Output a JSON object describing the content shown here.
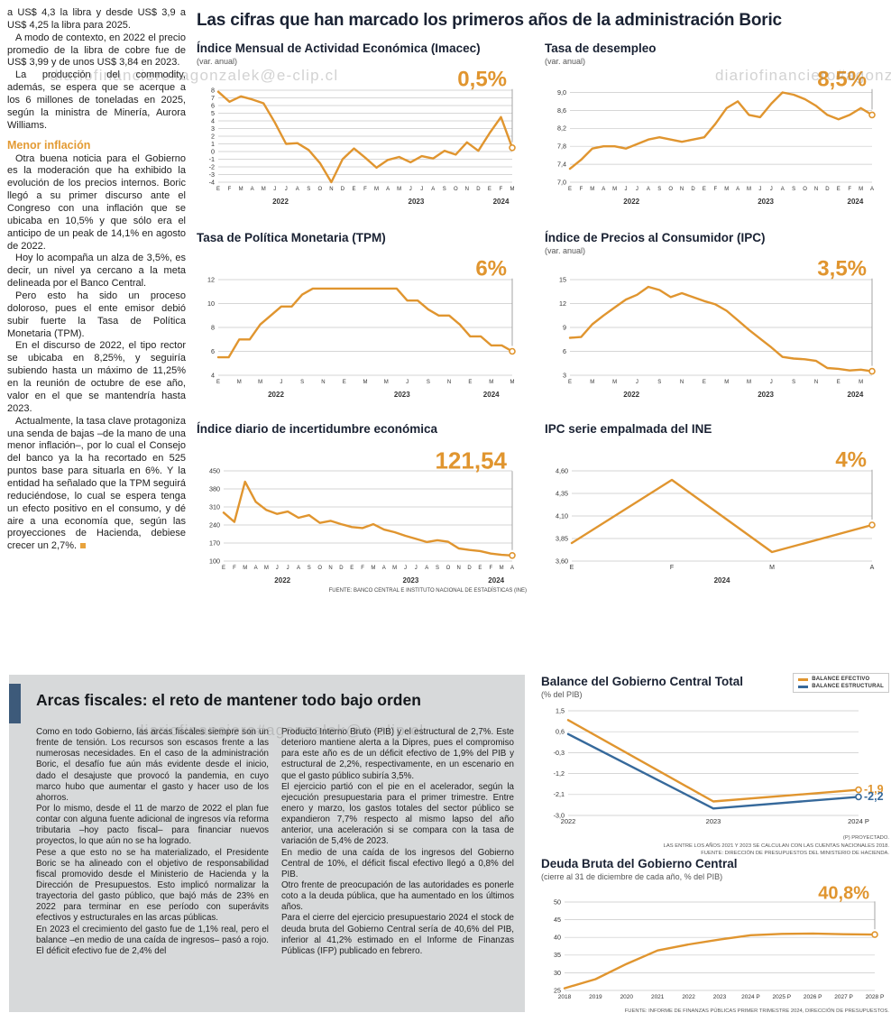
{
  "watermark": "diariofinanciero#agonzalek@e-clip.cl",
  "main_title": "Las cifras que han marcado los primeros años de la administración Boric",
  "left_column": {
    "paragraphs": [
      "a US$ 4,3 la libra y desde US$ 3,9 a US$ 4,25 la libra para 2025.",
      "A modo de contexto, en 2022 el precio promedio de la libra de cobre fue de US$ 3,99 y de unos US$ 3,84 en 2023.",
      "La producción del commodity, además, se espera que se acerque a los 6 millones de toneladas en 2025, según la ministra de Minería, Aurora Williams."
    ],
    "subhead": "Menor inflación",
    "paragraphs2": [
      "Otra buena noticia para el Gobierno es la moderación que ha exhibido la evolución de los precios internos. Boric llegó a su primer discurso ante el Congreso con una inflación que se ubicaba en 10,5% y que sólo era el anticipo de un peak de 14,1% en agosto de 2022.",
      "Hoy lo acompaña un alza de 3,5%, es decir, un nivel ya cercano a la meta delineada por el Banco Central.",
      "Pero esto ha sido un proceso doloroso, pues el ente emisor debió subir fuerte la Tasa de Política Monetaria (TPM).",
      "En el discurso de 2022, el tipo rector se ubicaba en 8,25%, y seguiría subiendo hasta un máximo de 11,25% en la reunión de octubre de ese año, valor en el que se mantendría hasta 2023.",
      "Actualmente, la tasa clave protagoniza una senda de bajas –de la mano de una menor inflación–, por lo cual el Consejo del banco ya la ha recortado en 525 puntos base para situarla en 6%. Y la entidad ha señalado que la TPM seguirá reduciéndose, lo cual se espera tenga un efecto positivo en el consumo, y dé aire a una economía que, según las proyecciones de Hacienda, debiese crecer un 2,7%."
    ]
  },
  "fiscal": {
    "headline": "Arcas fiscales: el reto de mantener todo bajo orden",
    "col1": [
      "Como en todo Gobierno, las arcas fiscales siempre son un frente de tensión. Los recursos son escasos frente a las numerosas necesidades. En el caso de la administración Boric, el desafío fue aún más evidente desde el inicio, dado el desajuste que provocó la pandemia, en cuyo marco hubo que aumentar el gasto y hacer uso de los ahorros.",
      "Por lo mismo, desde el 11 de marzo de 2022 el plan fue contar con alguna fuente adicional de ingresos vía reforma tributaria –hoy pacto fiscal– para financiar nuevos proyectos, lo que aún no se ha logrado.",
      "Pese a que esto no se ha materializado, el Presidente Boric se ha alineado con el objetivo de responsabilidad fiscal promovido desde el Ministerio de Hacienda y la Dirección de Presupuestos. Esto implicó normalizar la trayectoria del gasto público, que bajó más de 23% en 2022 para terminar en ese período con superávits efectivos y estructurales en las arcas públicas.",
      "En 2023 el crecimiento del gasto fue de 1,1% real, pero el balance –en medio de una caída de ingresos– pasó a rojo. El déficit efectivo fue de 2,4% del"
    ],
    "col2": [
      "Producto Interno Bruto (PIB) y el estructural de 2,7%. Este deterioro mantiene alerta a la Dipres, pues el compromiso para este año es de un déficit efectivo de 1,9% del PIB y estructural de 2,2%, respectivamente, en un escenario en que el gasto público subiría 3,5%.",
      "El ejercicio partió con el pie en el acelerador, según la ejecución presupuestaria para el primer trimestre. Entre enero y marzo, los gastos totales del sector público se expandieron 7,7% respecto al mismo lapso del año anterior, una aceleración si se compara con la tasa de variación de 5,4% de 2023.",
      "En medio de una caída de los ingresos del Gobierno Central de 10%, el déficit fiscal efectivo llegó a 0,8% del PIB.",
      "Otro frente de preocupación de las autoridades es ponerle coto a la deuda pública, que ha aumentado en los últimos años.",
      "Para el cierre del ejercicio presupuestario 2024 el stock de deuda bruta del Gobierno Central sería de 40,6% del PIB, inferior al 41,2% estimado en el Informe de Finanzas Públicas (IFP) publicado en febrero."
    ]
  },
  "colors": {
    "accent_orange": "#E0952F",
    "accent_blue": "#36699B",
    "panel_gray": "#D7D9DA",
    "title_dark": "#1A2233"
  },
  "chart_data": [
    {
      "type": "line",
      "title": "Índice Mensual de Actividad Económica (Imacec)",
      "subtitle": "(var. anual)",
      "color": "#E0952F",
      "callout": "0,5%",
      "ylim": [
        -4,
        8
      ],
      "yticks": [
        8,
        7,
        6,
        5,
        4,
        3,
        2,
        1,
        0,
        -1,
        -2,
        -3,
        -4
      ],
      "x_labels": [
        "E",
        "F",
        "M",
        "A",
        "M",
        "J",
        "J",
        "A",
        "S",
        "O",
        "N",
        "D",
        "E",
        "F",
        "M",
        "A",
        "M",
        "J",
        "J",
        "A",
        "S",
        "O",
        "N",
        "D",
        "E",
        "F",
        "M"
      ],
      "year_marks": [
        {
          "label": "2022",
          "i0": 0,
          "i1": 11
        },
        {
          "label": "2023",
          "i0": 12,
          "i1": 23
        },
        {
          "label": "2024",
          "i0": 24,
          "i1": 26
        }
      ],
      "values": [
        7.8,
        6.5,
        7.2,
        6.8,
        6.3,
        3.8,
        1.0,
        1.1,
        0.2,
        -1.5,
        -4.0,
        -1.0,
        0.4,
        -0.8,
        -2.1,
        -1.1,
        -0.7,
        -1.4,
        -0.6,
        -0.9,
        0.1,
        -0.4,
        1.2,
        0.1,
        2.4,
        4.5,
        0.5
      ]
    },
    {
      "type": "line",
      "title": "Tasa de desempleo",
      "subtitle": "(var. anual)",
      "color": "#E0952F",
      "callout": "8,5%",
      "ylim": [
        7.0,
        9.05
      ],
      "yticks": [
        "9,0",
        "8,6",
        "8,2",
        "7,8",
        "7,4",
        "7,0"
      ],
      "x_labels": [
        "E",
        "F",
        "M",
        "A",
        "M",
        "J",
        "J",
        "A",
        "S",
        "O",
        "N",
        "D",
        "E",
        "F",
        "M",
        "A",
        "M",
        "J",
        "J",
        "A",
        "S",
        "O",
        "N",
        "D",
        "E",
        "F",
        "M",
        "A"
      ],
      "year_marks": [
        {
          "label": "2022",
          "i0": 0,
          "i1": 11
        },
        {
          "label": "2023",
          "i0": 12,
          "i1": 23
        },
        {
          "label": "2024",
          "i0": 24,
          "i1": 27
        }
      ],
      "values": [
        7.3,
        7.5,
        7.75,
        7.8,
        7.8,
        7.75,
        7.85,
        7.95,
        8.0,
        7.95,
        7.9,
        7.95,
        8.0,
        8.3,
        8.65,
        8.8,
        8.5,
        8.45,
        8.75,
        9.0,
        8.95,
        8.85,
        8.7,
        8.5,
        8.4,
        8.5,
        8.65,
        8.5
      ]
    },
    {
      "type": "line",
      "title": "Tasa de Política Monetaria (TPM)",
      "color": "#E0952F",
      "callout": "6%",
      "ylim": [
        4,
        12
      ],
      "yticks": [
        12,
        10,
        8,
        6,
        4
      ],
      "x_labels": [
        "E",
        "",
        "M",
        "",
        "M",
        "",
        "J",
        "",
        "S",
        "",
        "N",
        "",
        "E",
        "",
        "M",
        "",
        "M",
        "",
        "J",
        "",
        "S",
        "",
        "N",
        "",
        "E",
        "",
        "M",
        "",
        "M"
      ],
      "year_marks": [
        {
          "label": "2022",
          "i0": 0,
          "i1": 11
        },
        {
          "label": "2023",
          "i0": 12,
          "i1": 23
        },
        {
          "label": "2024",
          "i0": 24,
          "i1": 28
        }
      ],
      "values": [
        5.5,
        5.5,
        7.0,
        7.0,
        8.25,
        9.0,
        9.75,
        9.75,
        10.75,
        11.25,
        11.25,
        11.25,
        11.25,
        11.25,
        11.25,
        11.25,
        11.25,
        11.25,
        10.25,
        10.25,
        9.5,
        9.0,
        9.0,
        8.25,
        7.25,
        7.25,
        6.5,
        6.5,
        6.0
      ]
    },
    {
      "type": "line",
      "title": "Índice de Precios al Consumidor (IPC)",
      "subtitle": "(var. anual)",
      "color": "#E0952F",
      "callout": "3,5%",
      "ylim": [
        3,
        15
      ],
      "yticks": [
        15,
        12,
        9,
        6,
        3
      ],
      "x_labels": [
        "E",
        "",
        "M",
        "",
        "M",
        "",
        "J",
        "",
        "S",
        "",
        "N",
        "",
        "E",
        "",
        "M",
        "",
        "M",
        "",
        "J",
        "",
        "S",
        "",
        "N",
        "",
        "E",
        "",
        "M",
        ""
      ],
      "year_marks": [
        {
          "label": "2022",
          "i0": 0,
          "i1": 11
        },
        {
          "label": "2023",
          "i0": 12,
          "i1": 23
        },
        {
          "label": "2024",
          "i0": 24,
          "i1": 27
        }
      ],
      "values": [
        7.7,
        7.8,
        9.4,
        10.5,
        11.5,
        12.5,
        13.1,
        14.1,
        13.7,
        12.8,
        13.3,
        12.8,
        12.3,
        11.9,
        11.1,
        9.9,
        8.7,
        7.6,
        6.5,
        5.3,
        5.1,
        5.0,
        4.8,
        3.9,
        3.8,
        3.6,
        3.7,
        3.5
      ]
    },
    {
      "type": "line",
      "title": "Índice diario de incertidumbre económica",
      "color": "#E0952F",
      "callout": "121,54",
      "ylim": [
        100,
        450
      ],
      "yticks": [
        450,
        380,
        310,
        240,
        170,
        100
      ],
      "x_labels": [
        "E",
        "F",
        "M",
        "A",
        "M",
        "J",
        "J",
        "A",
        "S",
        "O",
        "N",
        "D",
        "E",
        "F",
        "M",
        "A",
        "M",
        "J",
        "J",
        "A",
        "S",
        "O",
        "N",
        "D",
        "E",
        "F",
        "M",
        "A"
      ],
      "year_marks": [
        {
          "label": "2022",
          "i0": 0,
          "i1": 11
        },
        {
          "label": "2023",
          "i0": 12,
          "i1": 23
        },
        {
          "label": "2024",
          "i0": 24,
          "i1": 27
        }
      ],
      "values": [
        288,
        252,
        408,
        330,
        298,
        283,
        292,
        268,
        278,
        248,
        256,
        243,
        232,
        228,
        243,
        222,
        212,
        198,
        186,
        174,
        181,
        175,
        149,
        143,
        139,
        129,
        124,
        121.54
      ],
      "source": "FUENTE: BANCO CENTRAL E INSTITUTO NACIONAL DE ESTADÍSTICAS (INE)"
    },
    {
      "type": "line",
      "title": "IPC serie empalmada del INE",
      "color": "#E0952F",
      "callout": "4%",
      "ylim": [
        3.6,
        4.6
      ],
      "yticks": [
        "4,60",
        "4,35",
        "4,10",
        "3,85",
        "3,60"
      ],
      "x_labels": [
        "E",
        "F",
        "M",
        "A"
      ],
      "year_marks": [
        {
          "label": "2024",
          "i0": 0,
          "i1": 3
        }
      ],
      "values": [
        3.8,
        4.5,
        3.7,
        4.0
      ]
    },
    {
      "type": "line",
      "title": "Balance del Gobierno Central Total",
      "subtitle": "(% del PIB)",
      "ylim": [
        -3.0,
        1.5
      ],
      "yticks": [
        "1,5",
        "0,6",
        "-0,3",
        "-1,2",
        "-2,1",
        "-3,0"
      ],
      "x_labels": [
        "2022",
        "2023",
        "2024 P"
      ],
      "legend": [
        {
          "label": "BALANCE EFECTIVO",
          "color": "#E0952F"
        },
        {
          "label": "BALANCE ESTRUCTURAL",
          "color": "#36699B"
        }
      ],
      "series": [
        {
          "name": "BALANCE EFECTIVO",
          "color": "#E0952F",
          "values": [
            1.1,
            -2.4,
            -1.9
          ],
          "callout": "-1,9"
        },
        {
          "name": "BALANCE ESTRUCTURAL",
          "color": "#36699B",
          "values": [
            0.5,
            -2.7,
            -2.2
          ],
          "callout": "-2,2"
        }
      ],
      "footnotes": [
        "(P) PROYECTADO.",
        "LAS ENTRE LOS AÑOS 2021 Y 2023 SE CALCULAN CON LAS CUENTAS NACIONALES 2018.",
        "FUENTE: DIRECCIÓN DE PRESUPUESTOS DEL MINISTERIO DE HACIENDA."
      ]
    },
    {
      "type": "line",
      "title": "Deuda Bruta del Gobierno Central",
      "subtitle": "(cierre al 31 de diciembre de cada año, % del PIB)",
      "color": "#E0952F",
      "callout": "40,8%",
      "ylim": [
        25,
        50
      ],
      "yticks": [
        50,
        45,
        40,
        35,
        30,
        25
      ],
      "x_labels": [
        "2018",
        "2019",
        "2020",
        "2021",
        "2022",
        "2023",
        "2024 P",
        "2025 P",
        "2026 P",
        "2027 P",
        "2028 P"
      ],
      "values": [
        25.6,
        28.2,
        32.5,
        36.3,
        38.0,
        39.4,
        40.6,
        41.0,
        41.1,
        40.9,
        40.8
      ],
      "footnote": "FUENTE: INFORME DE FINANZAS PÚBLICAS PRIMER TRIMESTRE 2024, DIRECCIÓN DE PRESUPUESTOS."
    }
  ]
}
